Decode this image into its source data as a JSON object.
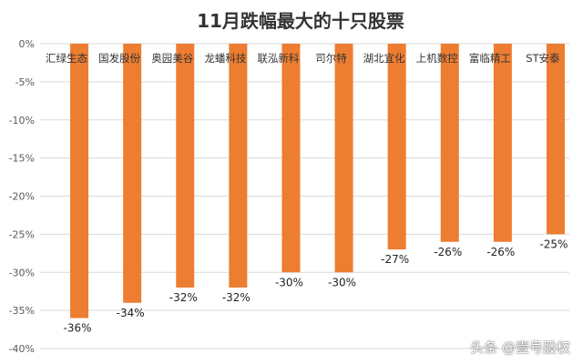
{
  "chart_data": {
    "type": "bar",
    "title": "11月跌幅最大的十只股票",
    "categories": [
      "汇绿生态",
      "国发股份",
      "奥园美谷",
      "龙蟠科技",
      "联泓新科",
      "司尔特",
      "湖北宜化",
      "上机数控",
      "富临精工",
      "ST安泰"
    ],
    "values": [
      -36,
      -34,
      -32,
      -32,
      -30,
      -30,
      -27,
      -26,
      -26,
      -25
    ],
    "data_labels": [
      "-36%",
      "-34%",
      "-32%",
      "-32%",
      "-30%",
      "-30%",
      "-27%",
      "-26%",
      "-26%",
      "-25%"
    ],
    "yticks": [
      "0%",
      "-5%",
      "-10%",
      "-15%",
      "-20%",
      "-25%",
      "-30%",
      "-35%",
      "-40%"
    ],
    "ylim": [
      -40,
      0
    ],
    "grid": true,
    "legend": "none",
    "bar_color": "#ED7D31"
  },
  "watermark": "头条 @壹号股权"
}
